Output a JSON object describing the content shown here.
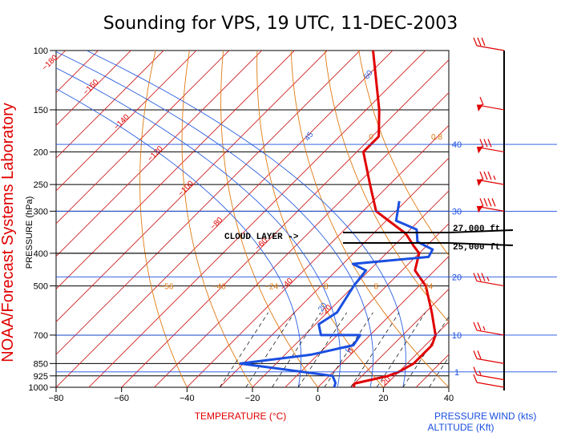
{
  "title": "Sounding for VPS, 19 UTC, 11-DEC-2003",
  "side_label": "NOAA/Forecast Systems Laboratory",
  "colors": {
    "temperature": "#e00000",
    "dewpoint": "#1a4fe0",
    "isotherm": "#d02020",
    "dry_adiabat": "#e07a10",
    "moist_adiabat": "#2a5fe0",
    "altitude": "#1a4fe0",
    "mixing_ratio": "#000000"
  },
  "labels": {
    "xlabel": "TEMPERATURE (°C)",
    "ylabel": "PRESSURE (hPa)",
    "wind": "WIND (kts)",
    "pressure_alt": "PRESSURE",
    "altitude": "ALTITUDE (Kft)",
    "cloud_layer": "CLOUD LAYER ->",
    "layer_top": "27,000 ft",
    "layer_base": "25,000 ft"
  },
  "chart_data": {
    "type": "skew-t",
    "xlim": [
      -80,
      40
    ],
    "ylim": [
      1000,
      100
    ],
    "y_scale": "log",
    "grid": true,
    "x_ticks": [
      "-80",
      "-60",
      "-40",
      "-20",
      "0",
      "20",
      "40"
    ],
    "pressure_ticks": [
      "100",
      "150",
      "200",
      "250",
      "300",
      "400",
      "500",
      "700",
      "850",
      "925",
      "1000"
    ],
    "altitude_ticks": [
      "1",
      "10",
      "20",
      "30",
      "40"
    ],
    "isotherm_labels": [
      "-180",
      "-160",
      "-140",
      "-120",
      "-100",
      "-80",
      "-60",
      "-40",
      "-20",
      "0",
      "20"
    ],
    "dry_adiabat_labels": [
      "-56",
      "-40",
      "-24",
      "-8",
      "8",
      "24",
      "0",
      "0.8"
    ],
    "moist_adiabat_labels": [
      "60",
      "45",
      "20",
      "0"
    ],
    "series": [
      {
        "name": "Temperature",
        "points": [
          {
            "p": 1000,
            "t": 11
          },
          {
            "p": 975,
            "t": 10
          },
          {
            "p": 950,
            "t": 14
          },
          {
            "p": 925,
            "t": 18
          },
          {
            "p": 900,
            "t": 20
          },
          {
            "p": 850,
            "t": 22
          },
          {
            "p": 800,
            "t": 22
          },
          {
            "p": 750,
            "t": 22
          },
          {
            "p": 700,
            "t": 20
          },
          {
            "p": 600,
            "t": 12
          },
          {
            "p": 500,
            "t": 2
          },
          {
            "p": 450,
            "t": -6
          },
          {
            "p": 400,
            "t": -10
          },
          {
            "p": 380,
            "t": -14
          },
          {
            "p": 350,
            "t": -20
          },
          {
            "p": 300,
            "t": -36
          },
          {
            "p": 250,
            "t": -46
          },
          {
            "p": 200,
            "t": -58
          },
          {
            "p": 180,
            "t": -58
          },
          {
            "p": 150,
            "t": -66
          },
          {
            "p": 100,
            "t": -86
          }
        ]
      },
      {
        "name": "Dewpoint",
        "points": [
          {
            "p": 1000,
            "t": 5
          },
          {
            "p": 970,
            "t": 4
          },
          {
            "p": 925,
            "t": 1
          },
          {
            "p": 850,
            "t": -31
          },
          {
            "p": 800,
            "t": -12
          },
          {
            "p": 750,
            "t": -2
          },
          {
            "p": 700,
            "t": -3
          },
          {
            "p": 700,
            "t": -15
          },
          {
            "p": 650,
            "t": -19
          },
          {
            "p": 600,
            "t": -17
          },
          {
            "p": 500,
            "t": -20
          },
          {
            "p": 450,
            "t": -21
          },
          {
            "p": 430,
            "t": -27
          },
          {
            "p": 410,
            "t": -6
          },
          {
            "p": 390,
            "t": -7
          },
          {
            "p": 370,
            "t": -14
          },
          {
            "p": 340,
            "t": -18
          },
          {
            "p": 320,
            "t": -27
          },
          {
            "p": 280,
            "t": -32
          }
        ]
      }
    ],
    "wind_barbs": [
      {
        "p": 1000,
        "speed_kt": 10,
        "dir_deg": 250
      },
      {
        "p": 950,
        "speed_kt": 15,
        "dir_deg": 250
      },
      {
        "p": 850,
        "speed_kt": 20,
        "dir_deg": 260
      },
      {
        "p": 700,
        "speed_kt": 25,
        "dir_deg": 260
      },
      {
        "p": 500,
        "speed_kt": 35,
        "dir_deg": 260
      },
      {
        "p": 300,
        "speed_kt": 90,
        "dir_deg": 260
      },
      {
        "p": 250,
        "speed_kt": 85,
        "dir_deg": 260
      },
      {
        "p": 200,
        "speed_kt": 80,
        "dir_deg": 260
      },
      {
        "p": 150,
        "speed_kt": 60,
        "dir_deg": 260
      },
      {
        "p": 100,
        "speed_kt": 30,
        "dir_deg": 260
      }
    ]
  }
}
